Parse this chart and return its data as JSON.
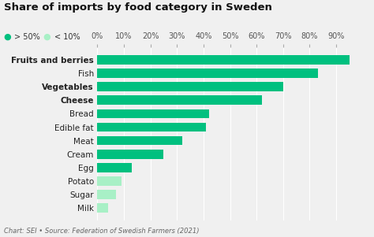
{
  "title": "Share of imports by food category in Sweden",
  "categories": [
    "Fruits and berries",
    "Fish",
    "Vegetables",
    "Cheese",
    "Bread",
    "Edible fat",
    "Meat",
    "Cream",
    "Egg",
    "Potato",
    "Sugar",
    "Milk"
  ],
  "values": [
    95,
    83,
    70,
    62,
    42,
    41,
    32,
    25,
    13,
    9,
    7,
    4
  ],
  "bold_categories": [
    "Fruits and berries",
    "Vegetables",
    "Cheese"
  ],
  "colors": {
    "above50": "#00C07F",
    "below10": "#A8F0C6"
  },
  "bar_colors": [
    "#00C07F",
    "#00C07F",
    "#00C07F",
    "#00C07F",
    "#00C07F",
    "#00C07F",
    "#00C07F",
    "#00C07F",
    "#00C07F",
    "#A8F0C6",
    "#A8F0C6",
    "#A8F0C6"
  ],
  "xlim": [
    0,
    100
  ],
  "xticks": [
    0,
    10,
    20,
    30,
    40,
    50,
    60,
    70,
    80,
    90
  ],
  "xtick_labels": [
    "0%",
    "10%",
    "20%",
    "30%",
    "40%",
    "50%",
    "60%",
    "70%",
    "80%",
    "90%"
  ],
  "legend_above50_label": "> 50%",
  "legend_below10_label": "< 10%",
  "source_text": "Chart: SEI • Source: Federation of Swedish Farmers (2021)",
  "background_color": "#f0f0f0",
  "title_fontsize": 9.5,
  "tick_fontsize": 7,
  "label_fontsize": 7.5,
  "source_fontsize": 6
}
